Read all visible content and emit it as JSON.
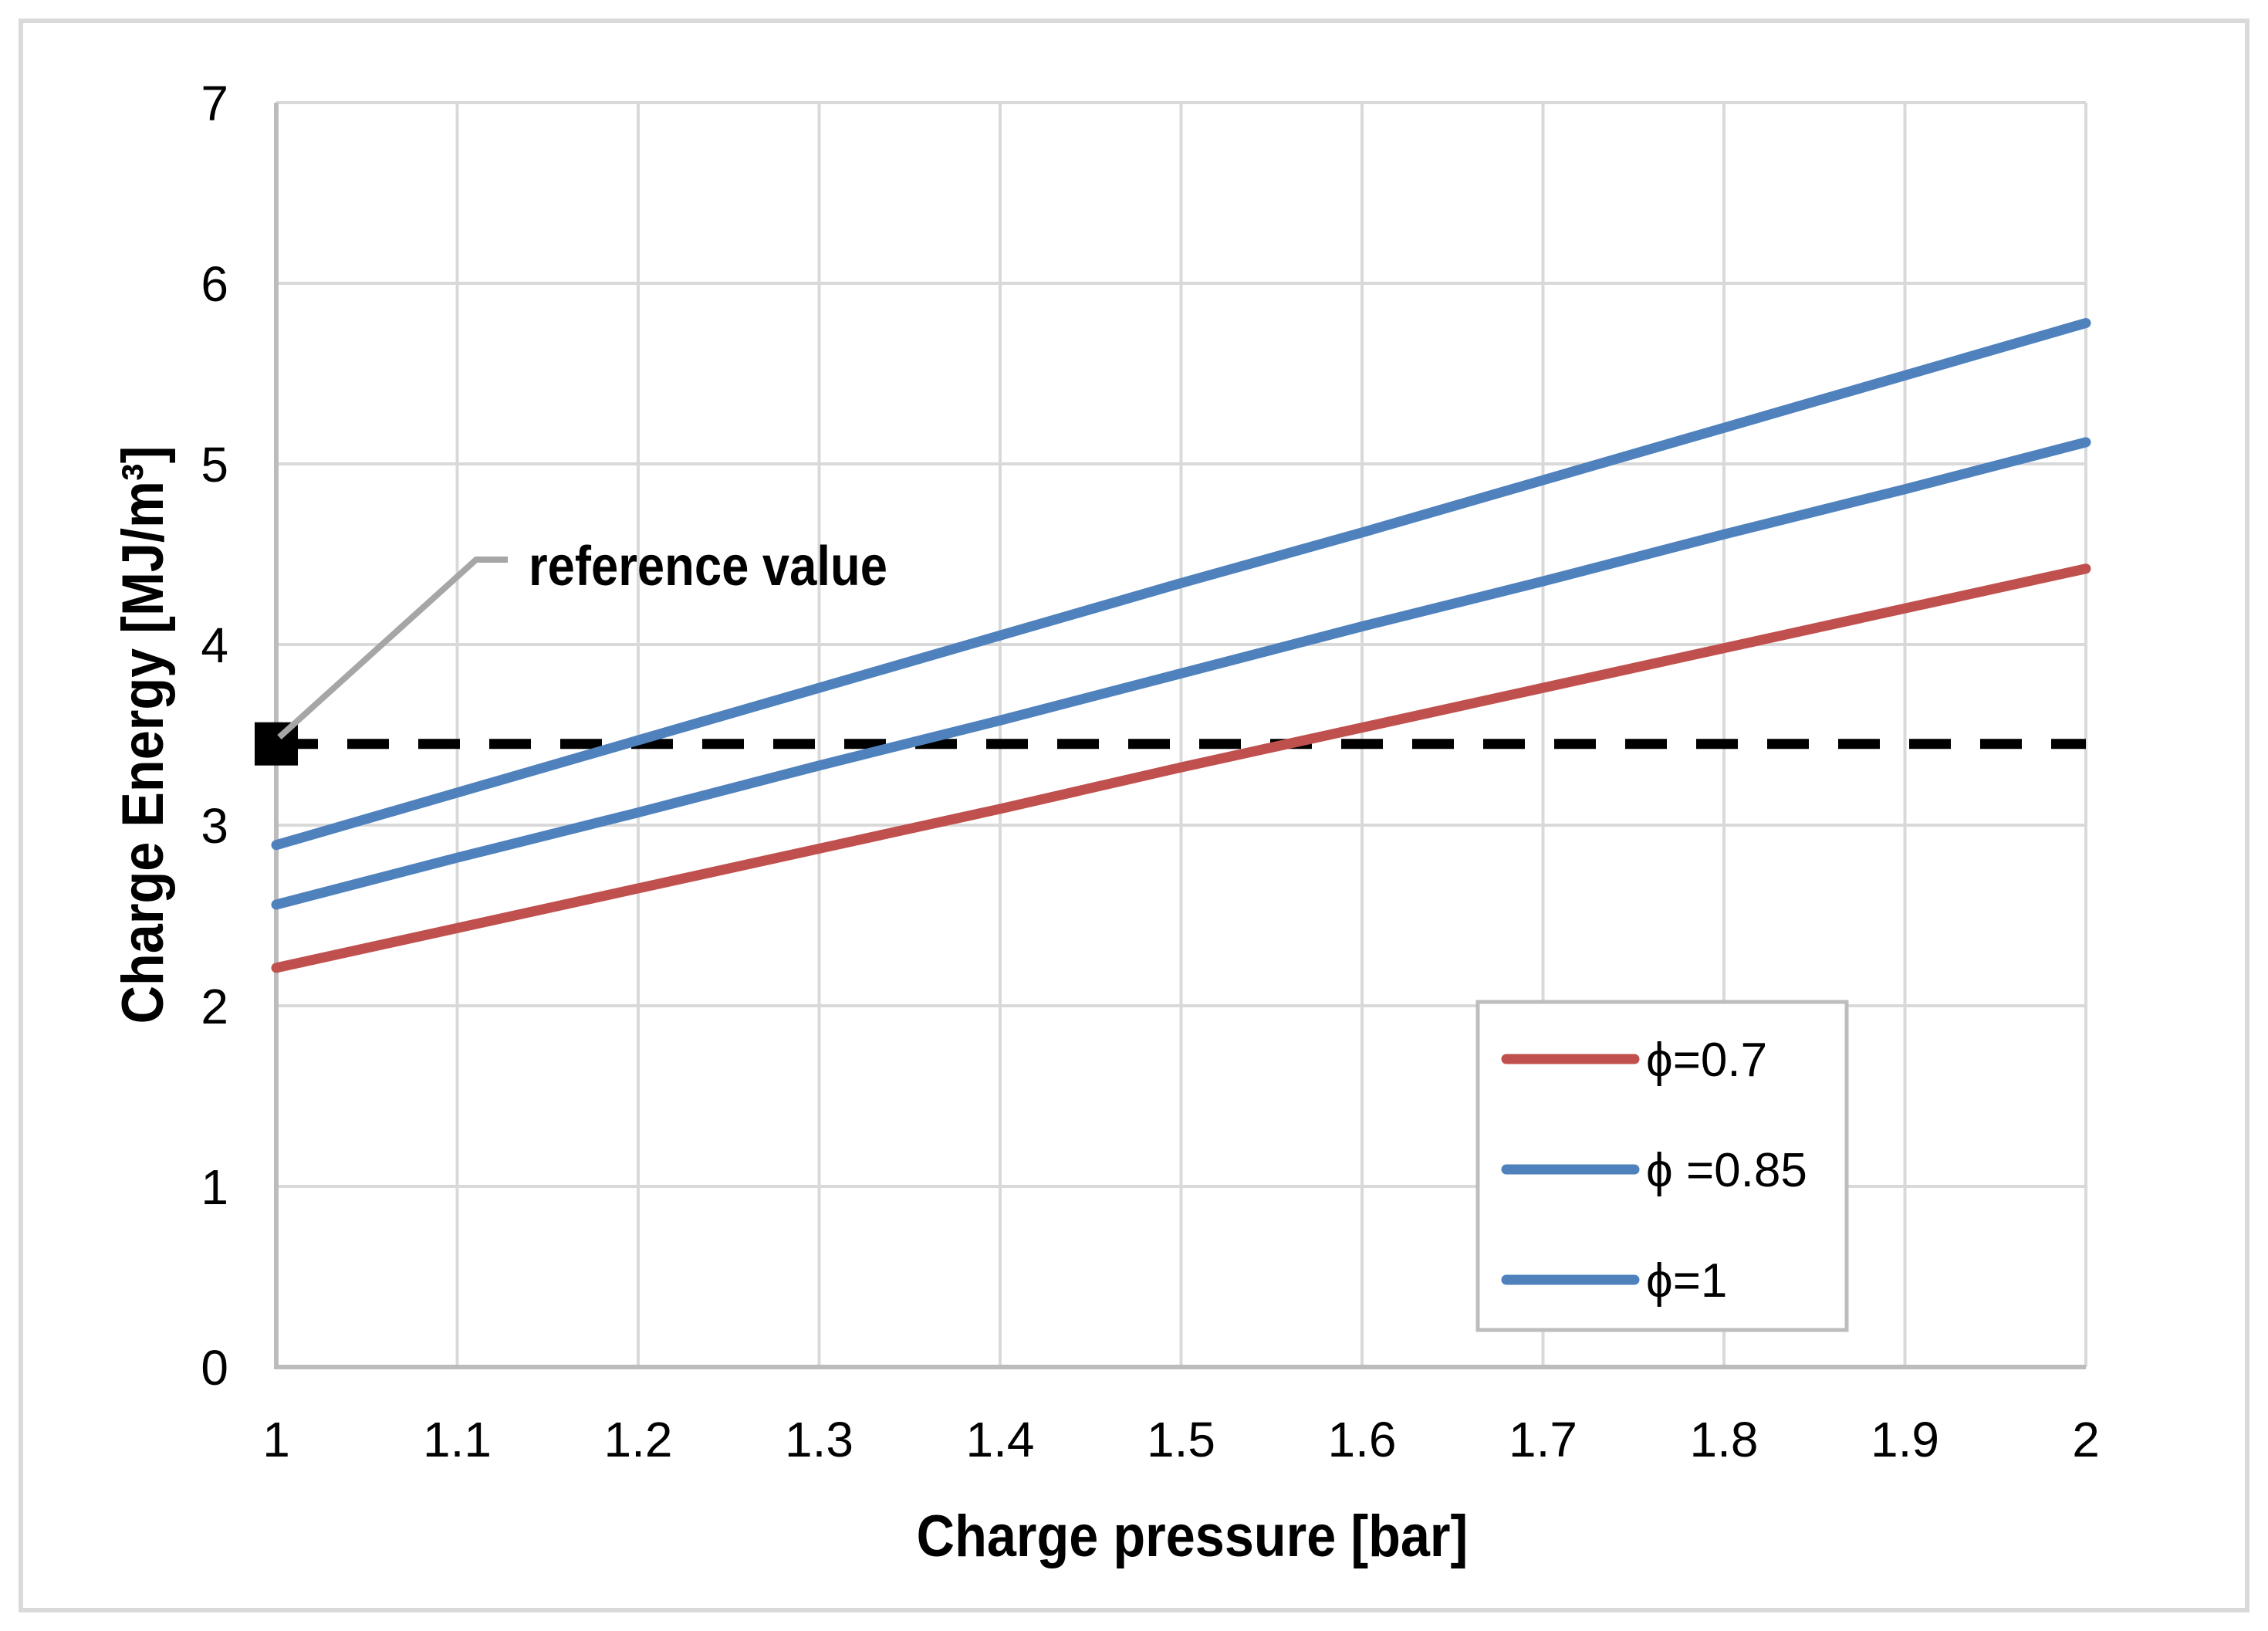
{
  "chart_data": {
    "type": "line",
    "title": "",
    "xlabel": "Charge pressure [bar]",
    "ylabel": "Charge Energy [MJ/m³]",
    "xlim": [
      1,
      2
    ],
    "ylim": [
      0,
      7
    ],
    "grid": true,
    "x_tick_labels": [
      "1",
      "1.1",
      "1.2",
      "1.3",
      "1.4",
      "1.5",
      "1.6",
      "1.7",
      "1.8",
      "1.9",
      "2"
    ],
    "y_tick_labels": [
      "0",
      "1",
      "2",
      "3",
      "4",
      "5",
      "6",
      "7"
    ],
    "x": [
      1,
      1.1,
      1.2,
      1.3,
      1.4,
      1.5,
      1.6,
      1.7,
      1.8,
      1.9,
      2
    ],
    "series": [
      {
        "name": "ϕ=0.7",
        "color": "#C0504D",
        "values": [
          2.21,
          2.43,
          2.65,
          2.87,
          3.09,
          3.32,
          3.54,
          3.76,
          3.98,
          4.2,
          4.42
        ]
      },
      {
        "name": "ϕ =0.85",
        "color": "#4F81BD",
        "values": [
          2.56,
          2.82,
          3.07,
          3.33,
          3.58,
          3.84,
          4.1,
          4.35,
          4.61,
          4.86,
          5.12
        ]
      },
      {
        "name": "ϕ=1",
        "color": "#4F81BD",
        "values": [
          2.89,
          3.18,
          3.47,
          3.76,
          4.05,
          4.34,
          4.62,
          4.91,
          5.2,
          5.49,
          5.78
        ]
      }
    ],
    "reference": {
      "label": "reference value",
      "value": 3.45,
      "line_color": "#000000",
      "line_style": "dashed",
      "marker": "black-square"
    },
    "legend": {
      "position": "lower right",
      "items": [
        {
          "label": "ϕ=0.7",
          "color": "#C0504D"
        },
        {
          "label": "ϕ =0.85",
          "color": "#4F81BD"
        },
        {
          "label": "ϕ=1",
          "color": "#4F81BD"
        }
      ]
    },
    "style": {
      "gridline_color": "#D9D9D9",
      "axis_line_color": "#BCBCBC",
      "plot_edge_color": "#D9D9D9",
      "legend_border_color": "#BDBDBD",
      "leader_line_color": "#A6A6A6",
      "figure_border_color": "#DADADA",
      "background": "#FFFFFF"
    }
  }
}
